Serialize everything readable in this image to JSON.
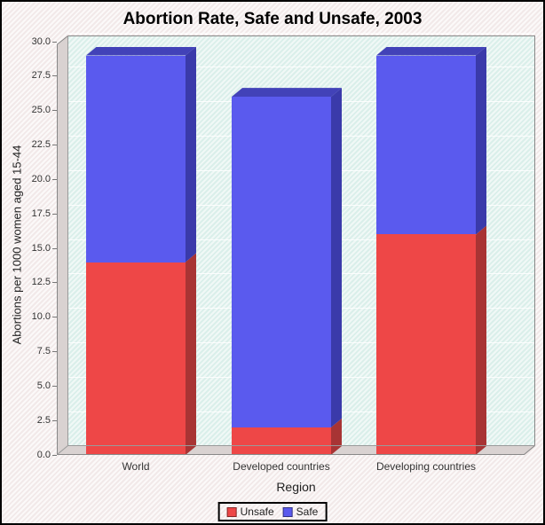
{
  "chart_data": {
    "type": "bar",
    "stacked": true,
    "style": "3d",
    "title": "Abortion Rate, Safe and Unsafe, 2003",
    "xlabel": "Region",
    "ylabel": "Abortions per 1000 women aged 15-44",
    "categories": [
      "World",
      "Developed countries",
      "Developing countries"
    ],
    "series": [
      {
        "name": "Unsafe",
        "values": [
          14,
          2,
          16
        ],
        "color": "#ee4747",
        "side_color": "#a83434",
        "top_color": "#c43c3c"
      },
      {
        "name": "Safe",
        "values": [
          15,
          24,
          13
        ],
        "color": "#5a5aee",
        "side_color": "#3a3aaa",
        "top_color": "#4242b8"
      }
    ],
    "totals": [
      29,
      26,
      29
    ],
    "ylim": [
      0,
      30
    ],
    "ytick_step": 2.5,
    "ytick_labels": [
      "0.0",
      "2.5",
      "5.0",
      "7.5",
      "10.0",
      "12.5",
      "15.0",
      "17.5",
      "20.0",
      "22.5",
      "25.0",
      "27.5",
      "30.0"
    ],
    "grid": true,
    "legend_position": "bottom",
    "colors": {
      "plot_bg": "#e2f2ee",
      "outer_bg": "#f7f2f1",
      "wall": "#d9d2d1",
      "gridline": "#ffffff",
      "plot_border": "#888888",
      "text": "#333333"
    }
  }
}
